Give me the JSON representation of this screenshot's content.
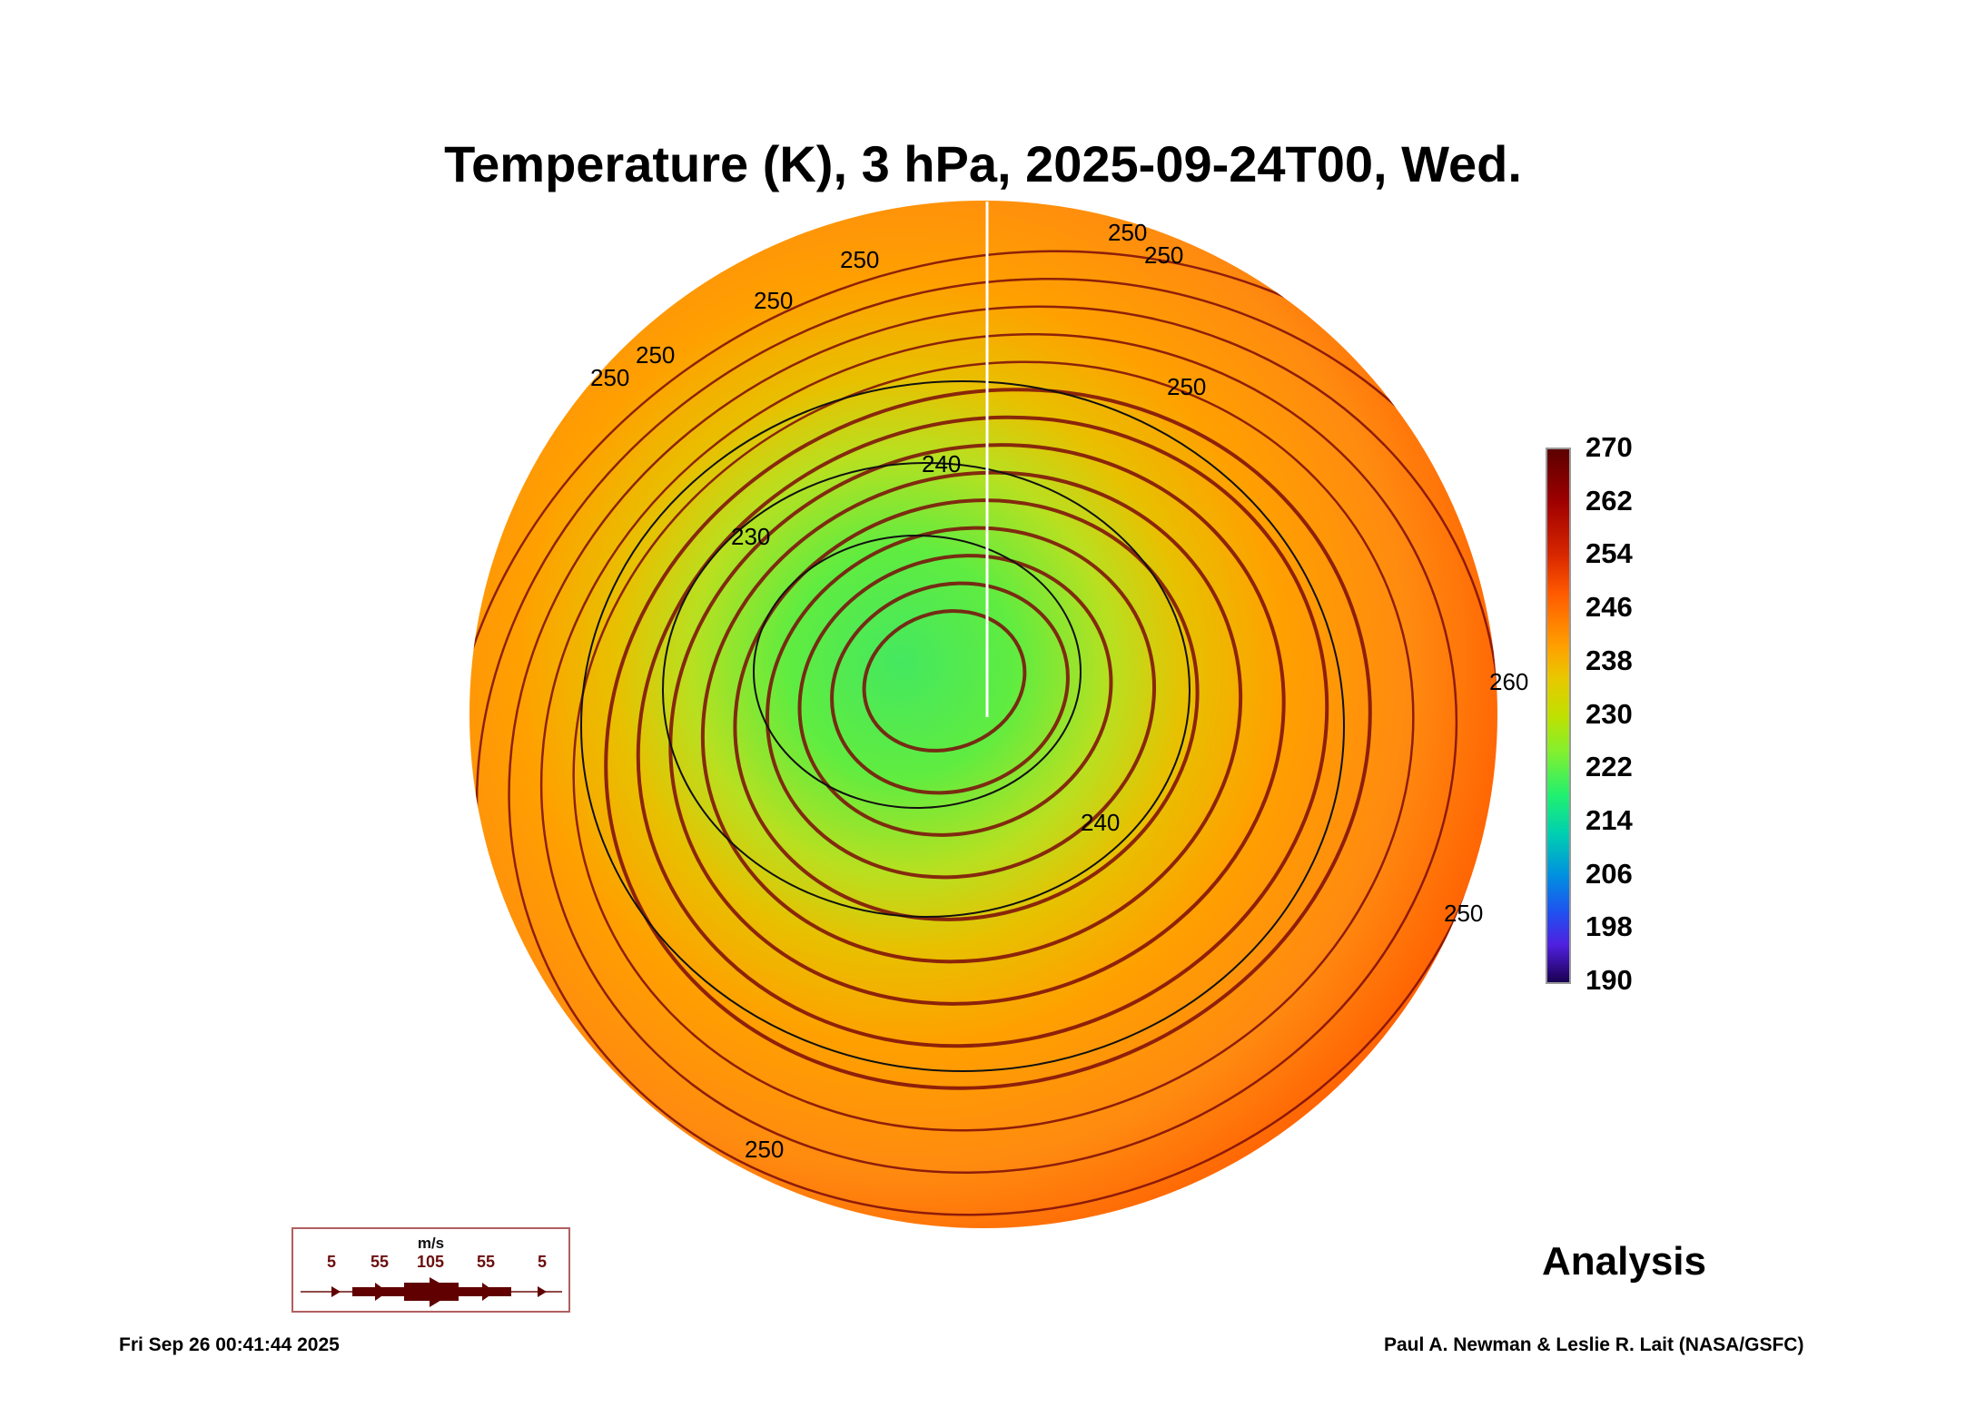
{
  "chart_data": {
    "type": "heatmap",
    "title": "Temperature (K), 3 hPa, 2025-09-24T00, Wed.",
    "projection": "north polar orthographic",
    "colorbar": {
      "ticks": [
        "270",
        "262",
        "254",
        "246",
        "238",
        "230",
        "222",
        "214",
        "206",
        "198",
        "190"
      ],
      "range": [
        190,
        270
      ],
      "units": "K"
    },
    "contour_labels": [
      "250",
      "250",
      "250",
      "250",
      "250",
      "250",
      "250",
      "240",
      "230",
      "240",
      "250",
      "250",
      "260"
    ],
    "wind_legend": {
      "unit": "m/s",
      "values": [
        "5",
        "55",
        "105",
        "55",
        "5"
      ]
    },
    "field_summary": {
      "min_approx": 222,
      "max_approx": 262
    }
  },
  "labels": {
    "analysis": "Analysis",
    "timestamp": "Fri Sep 26 00:41:44 2025",
    "credit": "Paul A. Newman & Leslie R. Lait (NASA/GSFC)"
  }
}
